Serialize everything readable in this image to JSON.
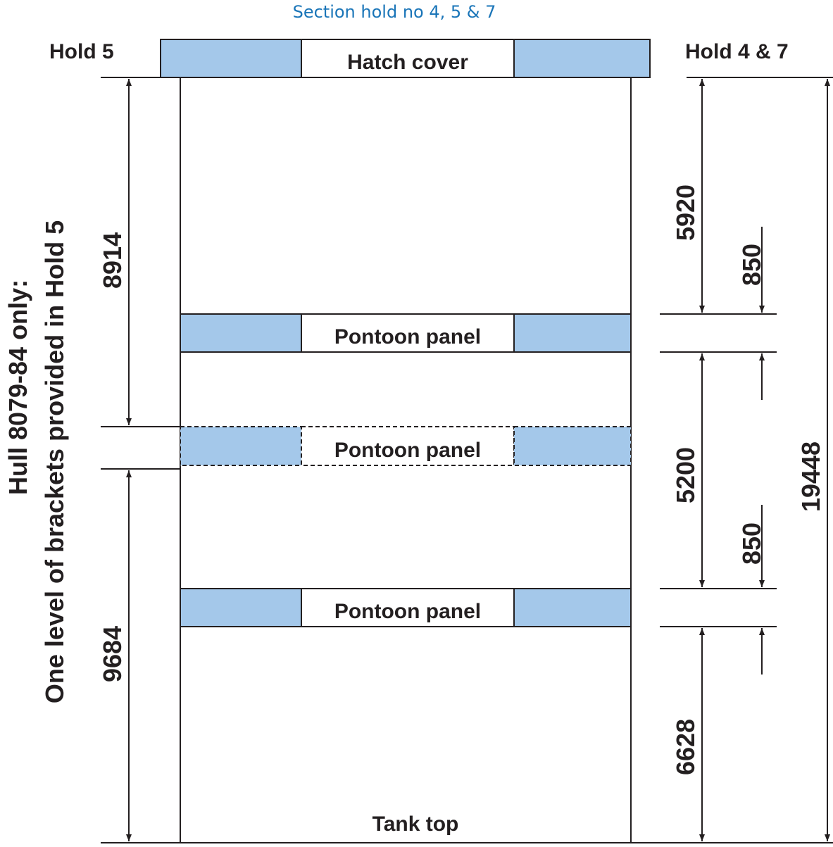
{
  "title": "Section hold no 4, 5 & 7",
  "left_header": "Hold 5",
  "right_header": "Hold 4 & 7",
  "side_note": {
    "line1": "Hull 8079-84 only:",
    "line2": "One level of brackets provided in Hold 5"
  },
  "panels": {
    "hatch": "Hatch cover",
    "pontoon_upper": "Pontoon panel",
    "pontoon_optional": "Pontoon panel",
    "pontoon_lower": "Pontoon panel"
  },
  "bottom_label": "Tank top",
  "dimensions": {
    "left_upper": "8914",
    "left_lower": "9684",
    "right_top": "5920",
    "right_mid": "5200",
    "right_bottom": "6628",
    "panel_thickness_upper": "850",
    "panel_thickness_lower": "850",
    "overall": "19448"
  },
  "colors": {
    "panel_fill": "#a4c8ea",
    "line": "#231f20",
    "title": "#1a75b8"
  }
}
